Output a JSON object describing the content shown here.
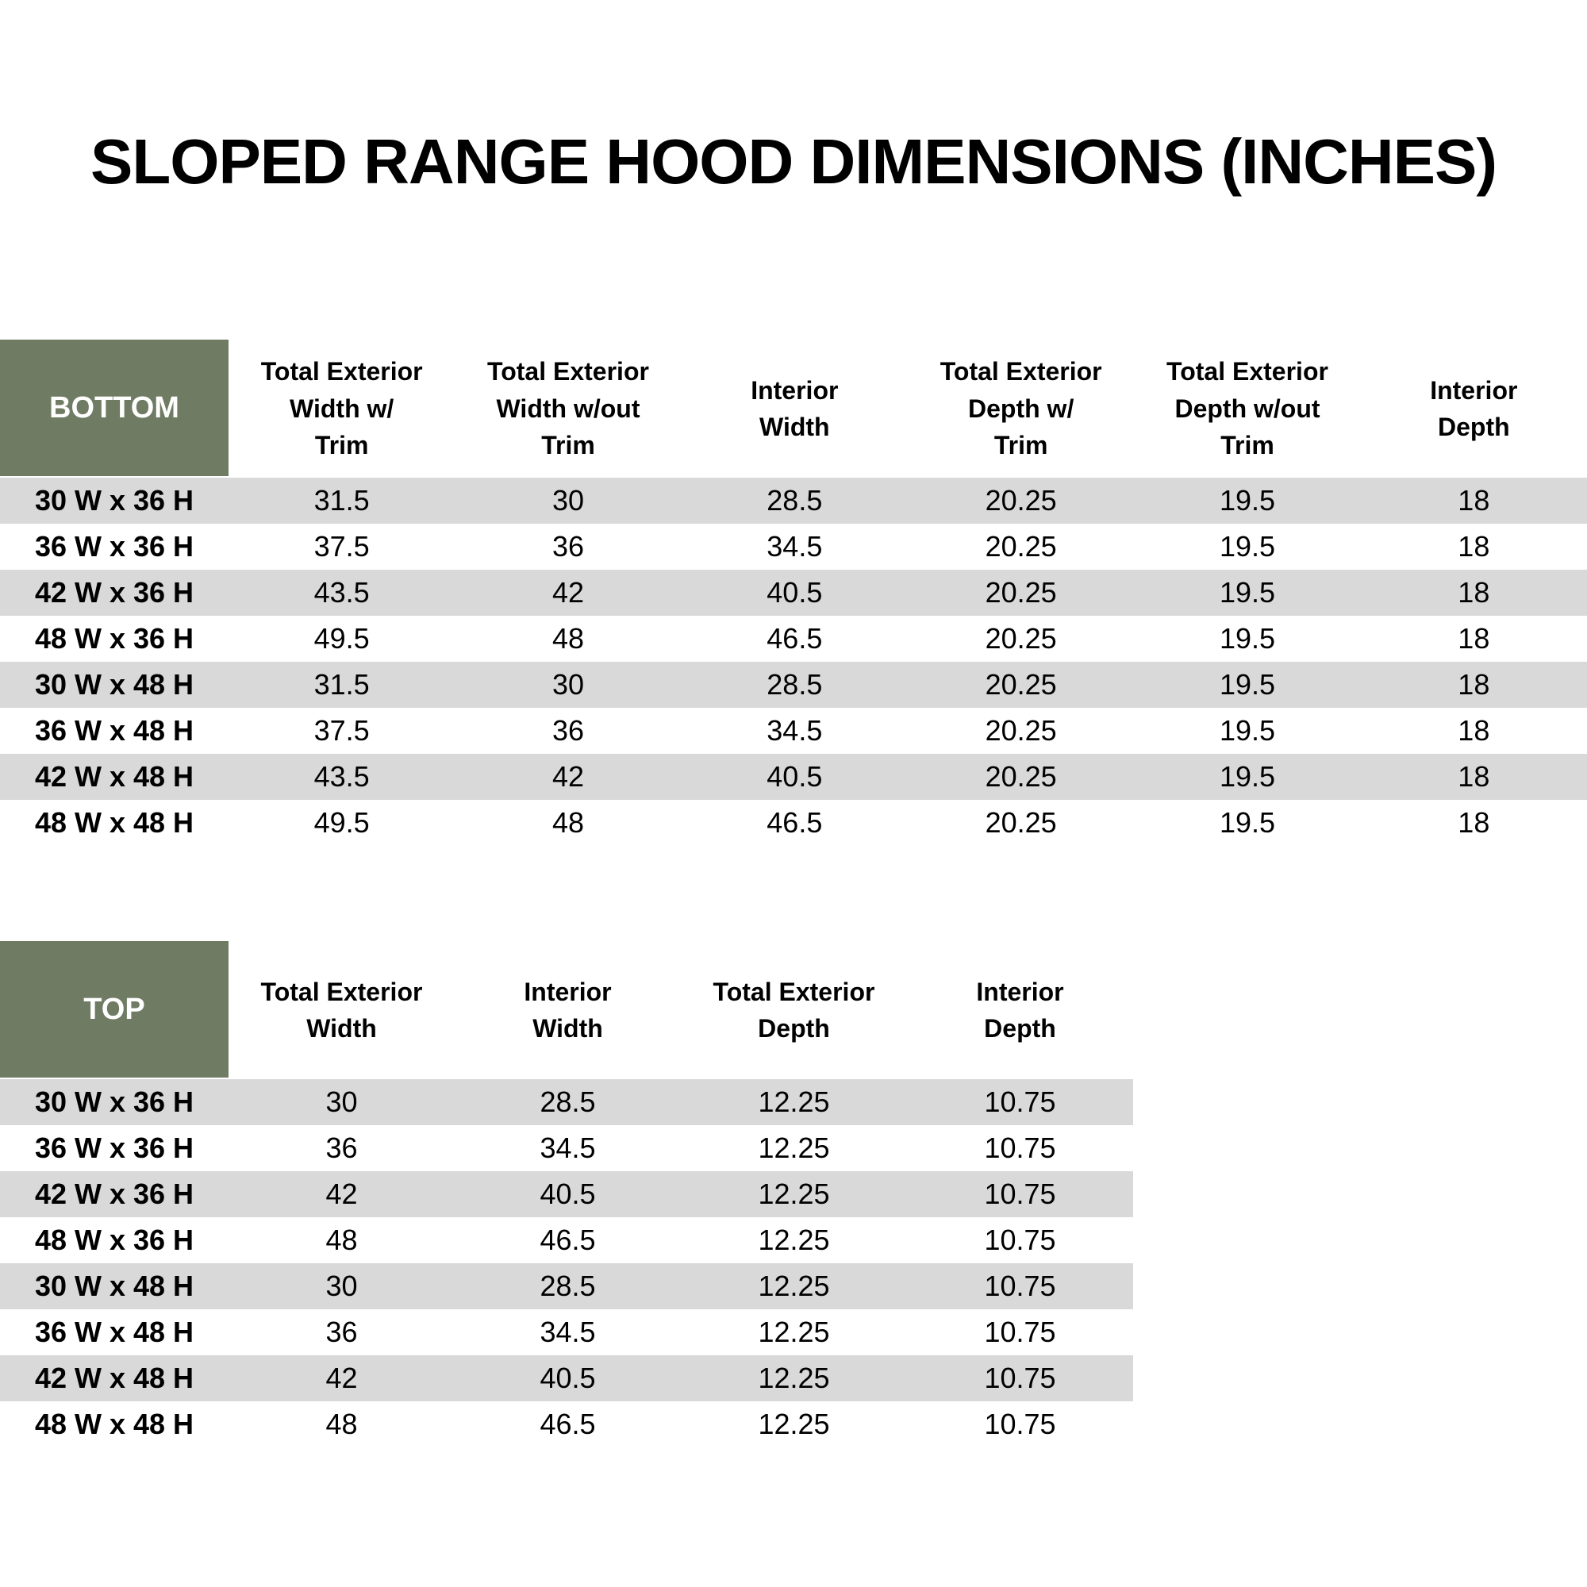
{
  "page": {
    "title": "SLOPED RANGE HOOD DIMENSIONS (INCHES)"
  },
  "colors": {
    "header_green": "#6F7B63",
    "row_alt_gray": "#D9D9D9",
    "row_white": "#FFFFFF",
    "text_black": "#000000",
    "header_label_white": "#FFFFFF"
  },
  "bottom_table": {
    "label": "BOTTOM",
    "columns": [
      "Total Exterior\nWidth w/\nTrim",
      "Total Exterior\nWidth w/out\nTrim",
      "Interior\nWidth",
      "Total Exterior\nDepth w/\nTrim",
      "Total Exterior\nDepth w/out\nTrim",
      "Interior\nDepth"
    ],
    "rows": [
      {
        "size": "30 W x 36 H",
        "values": [
          "31.5",
          "30",
          "28.5",
          "20.25",
          "19.5",
          "18"
        ]
      },
      {
        "size": "36 W x 36 H",
        "values": [
          "37.5",
          "36",
          "34.5",
          "20.25",
          "19.5",
          "18"
        ]
      },
      {
        "size": "42 W x 36 H",
        "values": [
          "43.5",
          "42",
          "40.5",
          "20.25",
          "19.5",
          "18"
        ]
      },
      {
        "size": "48 W x 36 H",
        "values": [
          "49.5",
          "48",
          "46.5",
          "20.25",
          "19.5",
          "18"
        ]
      },
      {
        "size": "30 W x 48 H",
        "values": [
          "31.5",
          "30",
          "28.5",
          "20.25",
          "19.5",
          "18"
        ]
      },
      {
        "size": "36 W x 48 H",
        "values": [
          "37.5",
          "36",
          "34.5",
          "20.25",
          "19.5",
          "18"
        ]
      },
      {
        "size": "42 W x 48 H",
        "values": [
          "43.5",
          "42",
          "40.5",
          "20.25",
          "19.5",
          "18"
        ]
      },
      {
        "size": "48 W x 48 H",
        "values": [
          "49.5",
          "48",
          "46.5",
          "20.25",
          "19.5",
          "18"
        ]
      }
    ]
  },
  "top_table": {
    "label": "TOP",
    "columns": [
      "Total Exterior\nWidth",
      "Interior\nWidth",
      "Total Exterior\nDepth",
      "Interior\nDepth"
    ],
    "rows": [
      {
        "size": "30 W x 36 H",
        "values": [
          "30",
          "28.5",
          "12.25",
          "10.75"
        ]
      },
      {
        "size": "36 W x 36 H",
        "values": [
          "36",
          "34.5",
          "12.25",
          "10.75"
        ]
      },
      {
        "size": "42 W x 36 H",
        "values": [
          "42",
          "40.5",
          "12.25",
          "10.75"
        ]
      },
      {
        "size": "48 W x 36 H",
        "values": [
          "48",
          "46.5",
          "12.25",
          "10.75"
        ]
      },
      {
        "size": "30 W x 48 H",
        "values": [
          "30",
          "28.5",
          "12.25",
          "10.75"
        ]
      },
      {
        "size": "36 W x 48 H",
        "values": [
          "36",
          "34.5",
          "12.25",
          "10.75"
        ]
      },
      {
        "size": "42 W x 48 H",
        "values": [
          "42",
          "40.5",
          "12.25",
          "10.75"
        ]
      },
      {
        "size": "48 W x 48 H",
        "values": [
          "48",
          "46.5",
          "12.25",
          "10.75"
        ]
      }
    ]
  }
}
